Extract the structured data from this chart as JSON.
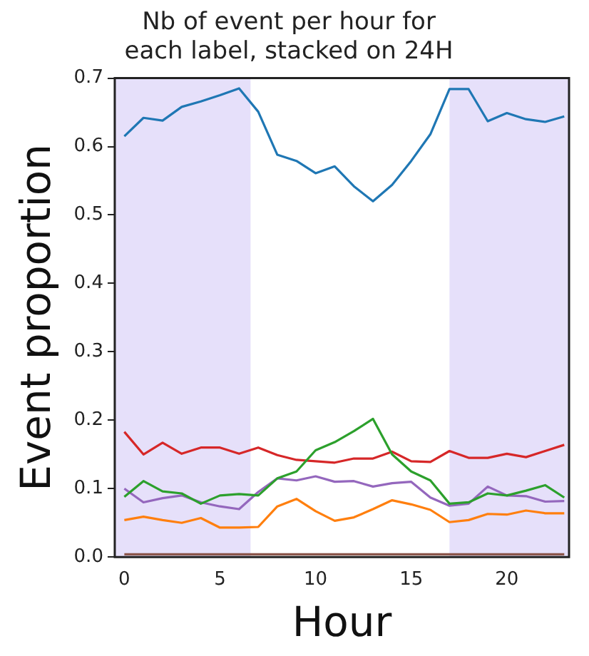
{
  "chart_data": {
    "type": "line",
    "title": "Nb of event per hour for each label, stacked on 24H",
    "xlabel": "Hour",
    "ylabel": "Event proportion",
    "x": [
      0,
      1,
      2,
      3,
      4,
      5,
      6,
      7,
      8,
      9,
      10,
      11,
      12,
      13,
      14,
      15,
      16,
      17,
      18,
      19,
      20,
      21,
      22,
      23
    ],
    "series": [
      {
        "color": "#1f77b4",
        "values": [
          0.615,
          0.642,
          0.638,
          0.658,
          0.666,
          0.675,
          0.685,
          0.651,
          0.588,
          0.579,
          0.561,
          0.571,
          0.542,
          0.52,
          0.544,
          0.579,
          0.618,
          0.684,
          0.684,
          0.637,
          0.649,
          0.64,
          0.636,
          0.644
        ]
      },
      {
        "color": "#ff7f0e",
        "values": [
          0.054,
          0.059,
          0.054,
          0.05,
          0.057,
          0.043,
          0.043,
          0.044,
          0.074,
          0.085,
          0.067,
          0.053,
          0.058,
          0.07,
          0.083,
          0.077,
          0.069,
          0.051,
          0.054,
          0.063,
          0.062,
          0.068,
          0.064,
          0.064
        ]
      },
      {
        "color": "#2ca02c",
        "values": [
          0.088,
          0.111,
          0.096,
          0.093,
          0.078,
          0.09,
          0.092,
          0.09,
          0.115,
          0.125,
          0.156,
          0.168,
          0.184,
          0.202,
          0.15,
          0.125,
          0.112,
          0.078,
          0.08,
          0.093,
          0.09,
          0.097,
          0.105,
          0.087
        ]
      },
      {
        "color": "#d62728",
        "values": [
          0.183,
          0.15,
          0.167,
          0.151,
          0.16,
          0.16,
          0.151,
          0.16,
          0.149,
          0.142,
          0.14,
          0.138,
          0.144,
          0.144,
          0.154,
          0.14,
          0.139,
          0.155,
          0.145,
          0.145,
          0.151,
          0.146,
          0.155,
          0.164
        ]
      },
      {
        "color": "#9467bd",
        "values": [
          0.1,
          0.08,
          0.086,
          0.09,
          0.08,
          0.074,
          0.07,
          0.095,
          0.115,
          0.112,
          0.118,
          0.11,
          0.111,
          0.103,
          0.108,
          0.11,
          0.087,
          0.075,
          0.078,
          0.103,
          0.09,
          0.089,
          0.081,
          0.082
        ]
      },
      {
        "color": "#8c564b",
        "values": [
          0.004,
          0.004,
          0.004,
          0.004,
          0.004,
          0.004,
          0.004,
          0.004,
          0.004,
          0.004,
          0.004,
          0.004,
          0.004,
          0.004,
          0.004,
          0.004,
          0.004,
          0.004,
          0.004,
          0.004,
          0.004,
          0.004,
          0.004,
          0.004
        ]
      }
    ],
    "xlim": [
      -0.5,
      23.25
    ],
    "xticks": [
      0,
      5,
      10,
      15,
      20
    ],
    "ylim": [
      0,
      0.7
    ],
    "yticks": [
      {
        "value": 0,
        "label": "0.0"
      },
      0.1,
      0.2,
      0.3,
      0.4,
      0.5,
      0.6,
      0.7
    ],
    "bands": [
      {
        "axis": "x",
        "from": -0.5,
        "to": 6.6,
        "color": "#e6e0fa"
      },
      {
        "axis": "x",
        "from": 17,
        "to": 23.25,
        "color": "#e6e0fa"
      }
    ],
    "grid": false,
    "legend": false,
    "marker": "none",
    "line_style": "solid"
  }
}
